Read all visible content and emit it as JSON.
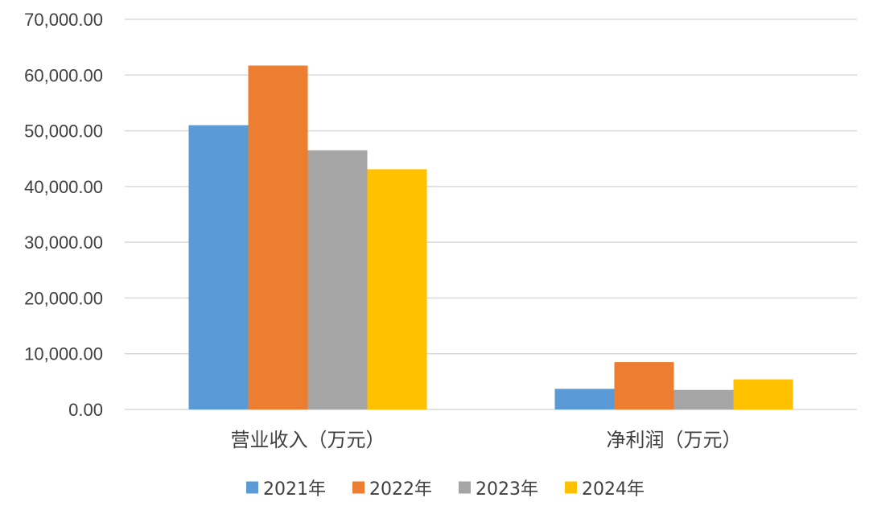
{
  "chart_data": {
    "type": "bar",
    "categories": [
      "营业收入（万元）",
      "净利润（万元）"
    ],
    "series": [
      {
        "name": "2021年",
        "color": "#5b9bd5",
        "values": [
          51000,
          3700
        ]
      },
      {
        "name": "2022年",
        "color": "#ed7d31",
        "values": [
          61700,
          8500
        ]
      },
      {
        "name": "2023年",
        "color": "#a5a5a5",
        "values": [
          46500,
          3500
        ]
      },
      {
        "name": "2024年",
        "color": "#ffc000",
        "values": [
          43100,
          5400
        ]
      }
    ],
    "ylim": [
      0,
      70000
    ],
    "yticks": [
      0,
      10000,
      20000,
      30000,
      40000,
      50000,
      60000,
      70000
    ],
    "ytick_labels": [
      "0.00",
      "10,000.00",
      "20,000.00",
      "30,000.00",
      "40,000.00",
      "50,000.00",
      "60,000.00",
      "70,000.00"
    ],
    "grid": true,
    "legend_position": "bottom"
  }
}
